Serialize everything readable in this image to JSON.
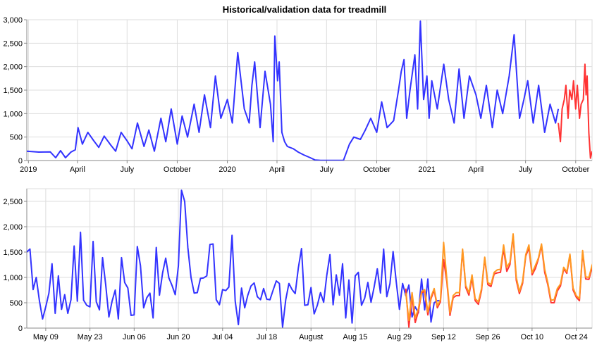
{
  "colors": {
    "history": "#3333ff",
    "validation": "#ff3333",
    "forecast": "#ff9922",
    "grid": "#dddddd"
  },
  "chart_data": [
    {
      "type": "line",
      "title": "Historical/validation data for treadmill",
      "xlabel": "",
      "ylabel": "",
      "x_range": [
        "2018-12-29",
        "2021-10-31"
      ],
      "ylim": [
        0,
        3000
      ],
      "yticks": [
        0,
        500,
        1000,
        1500,
        2000,
        2500,
        3000
      ],
      "ytick_labels": [
        "0",
        "500",
        "1,000",
        "1,500",
        "2,000",
        "2,500",
        "3,000"
      ],
      "xticks": [
        {
          "date": "2019-01-01",
          "label": "2019"
        },
        {
          "date": "2019-04-01",
          "label": "April"
        },
        {
          "date": "2019-07-01",
          "label": "July"
        },
        {
          "date": "2019-10-01",
          "label": "October"
        },
        {
          "date": "2020-01-01",
          "label": "2020"
        },
        {
          "date": "2020-04-01",
          "label": "April"
        },
        {
          "date": "2020-07-01",
          "label": "July"
        },
        {
          "date": "2020-10-01",
          "label": "October"
        },
        {
          "date": "2021-01-01",
          "label": "2021"
        },
        {
          "date": "2021-04-01",
          "label": "April"
        },
        {
          "date": "2021-07-01",
          "label": "July"
        },
        {
          "date": "2021-10-01",
          "label": "October"
        }
      ],
      "grid": true,
      "series": [
        {
          "role": "history",
          "x": [
            "2018-12-29",
            "2019-01-20",
            "2019-02-10",
            "2019-02-20",
            "2019-03-01",
            "2019-03-10",
            "2019-03-20",
            "2019-03-28",
            "2019-04-02",
            "2019-04-10",
            "2019-04-20",
            "2019-05-01",
            "2019-05-10",
            "2019-05-20",
            "2019-06-01",
            "2019-06-10",
            "2019-06-20",
            "2019-07-01",
            "2019-07-10",
            "2019-07-20",
            "2019-08-01",
            "2019-08-10",
            "2019-08-20",
            "2019-09-01",
            "2019-09-10",
            "2019-09-20",
            "2019-10-01",
            "2019-10-10",
            "2019-10-20",
            "2019-11-01",
            "2019-11-10",
            "2019-11-20",
            "2019-12-01",
            "2019-12-10",
            "2019-12-20",
            "2020-01-01",
            "2020-01-10",
            "2020-01-20",
            "2020-02-01",
            "2020-02-10",
            "2020-02-15",
            "2020-02-20",
            "2020-03-01",
            "2020-03-10",
            "2020-03-20",
            "2020-03-25",
            "2020-03-28",
            "2020-04-02",
            "2020-04-05",
            "2020-04-10",
            "2020-04-15",
            "2020-04-20",
            "2020-05-01",
            "2020-05-10",
            "2020-05-20",
            "2020-06-01",
            "2020-06-10",
            "2020-06-20",
            "2020-06-28",
            "2020-07-15",
            "2020-08-01",
            "2020-08-12",
            "2020-08-20",
            "2020-09-01",
            "2020-09-10",
            "2020-09-20",
            "2020-10-01",
            "2020-10-10",
            "2020-10-20",
            "2020-11-01",
            "2020-11-10",
            "2020-11-15",
            "2020-11-20",
            "2020-11-25",
            "2020-12-01",
            "2020-12-10",
            "2020-12-15",
            "2020-12-20",
            "2020-12-26",
            "2021-01-01",
            "2021-01-05",
            "2021-01-10",
            "2021-01-20",
            "2021-02-01",
            "2021-02-10",
            "2021-02-20",
            "2021-03-01",
            "2021-03-10",
            "2021-03-20",
            "2021-04-01",
            "2021-04-10",
            "2021-04-20",
            "2021-05-01",
            "2021-05-10",
            "2021-05-20",
            "2021-06-01",
            "2021-06-10",
            "2021-06-20",
            "2021-06-28",
            "2021-07-05",
            "2021-07-15",
            "2021-07-25",
            "2021-08-05",
            "2021-08-15",
            "2021-08-25",
            "2021-08-30"
          ],
          "y": [
            200,
            180,
            185,
            60,
            210,
            60,
            180,
            230,
            700,
            350,
            600,
            420,
            280,
            520,
            330,
            200,
            600,
            420,
            250,
            800,
            300,
            650,
            200,
            900,
            400,
            1100,
            350,
            950,
            500,
            1200,
            600,
            1400,
            700,
            1800,
            900,
            1300,
            800,
            2300,
            1100,
            800,
            1600,
            2100,
            700,
            1900,
            1200,
            400,
            2650,
            1700,
            2100,
            600,
            400,
            300,
            250,
            180,
            120,
            60,
            10,
            5,
            5,
            5,
            5,
            350,
            500,
            450,
            650,
            900,
            600,
            1250,
            700,
            850,
            1500,
            1900,
            2150,
            900,
            1500,
            2250,
            1100,
            2970,
            1300,
            1800,
            900,
            1700,
            1100,
            2050,
            1300,
            800,
            1950,
            900,
            1800,
            1400,
            900,
            1600,
            700,
            1500,
            1000,
            1800,
            2680,
            900,
            1300,
            1700,
            800,
            1600,
            600,
            1200,
            800,
            1100
          ]
        },
        {
          "role": "validation",
          "x": [
            "2021-08-30",
            "2021-09-03",
            "2021-09-06",
            "2021-09-10",
            "2021-09-13",
            "2021-09-17",
            "2021-09-20",
            "2021-09-24",
            "2021-09-27",
            "2021-10-01",
            "2021-10-04",
            "2021-10-08",
            "2021-10-11",
            "2021-10-15",
            "2021-10-18",
            "2021-10-20",
            "2021-10-22",
            "2021-10-25",
            "2021-10-28",
            "2021-10-31"
          ],
          "y": [
            800,
            400,
            1100,
            1300,
            1600,
            900,
            1500,
            1300,
            1700,
            1100,
            1600,
            900,
            1200,
            1300,
            2050,
            1400,
            1800,
            600,
            50,
            200
          ]
        }
      ]
    },
    {
      "type": "line",
      "title": "",
      "xlabel": "",
      "ylabel": "",
      "x_range": [
        "2021-05-03",
        "2021-10-29"
      ],
      "ylim": [
        0,
        2750
      ],
      "yticks": [
        0,
        500,
        1000,
        1500,
        2000,
        2500
      ],
      "ytick_labels": [
        "0",
        "500",
        "1,000",
        "1,500",
        "2,000",
        "2,500"
      ],
      "xticks": [
        {
          "date": "2021-05-09",
          "label": "May 09"
        },
        {
          "date": "2021-05-23",
          "label": "May 23"
        },
        {
          "date": "2021-06-06",
          "label": "Jun 06"
        },
        {
          "date": "2021-06-20",
          "label": "Jun 20"
        },
        {
          "date": "2021-07-04",
          "label": "Jul 04"
        },
        {
          "date": "2021-07-18",
          "label": "Jul 18"
        },
        {
          "date": "2021-08-01",
          "label": "August"
        },
        {
          "date": "2021-08-15",
          "label": "Aug 15"
        },
        {
          "date": "2021-08-29",
          "label": "Aug 29"
        },
        {
          "date": "2021-09-12",
          "label": "Sep 12"
        },
        {
          "date": "2021-09-26",
          "label": "Sep 26"
        },
        {
          "date": "2021-10-10",
          "label": "Oct 10"
        },
        {
          "date": "2021-10-24",
          "label": "Oct 24"
        }
      ],
      "grid": true,
      "series": [
        {
          "role": "history",
          "start": "2021-05-03",
          "y": [
            1500,
            1560,
            760,
            1000,
            540,
            180,
            420,
            690,
            1270,
            290,
            1030,
            370,
            660,
            290,
            560,
            1620,
            530,
            1890,
            550,
            450,
            420,
            1710,
            520,
            360,
            1390,
            850,
            220,
            530,
            750,
            180,
            1390,
            900,
            790,
            250,
            260,
            1610,
            1230,
            400,
            600,
            690,
            200,
            1590,
            650,
            1090,
            1380,
            990,
            840,
            660,
            1230,
            2720,
            2500,
            1590,
            1000,
            690,
            700,
            980,
            990,
            1030,
            1650,
            1660,
            560,
            460,
            760,
            740,
            810,
            1830,
            530,
            70,
            790,
            400,
            650,
            830,
            890,
            620,
            560,
            780,
            570,
            560,
            750,
            930,
            880,
            20,
            560,
            880,
            760,
            680,
            1190,
            1570,
            450,
            460,
            800,
            280,
            450,
            700,
            510,
            1040,
            1450,
            460,
            1050,
            650,
            1270,
            200,
            950,
            100,
            1030,
            1100,
            450,
            590,
            900,
            510,
            810,
            1170,
            690,
            1560,
            620,
            880,
            1510,
            910,
            370,
            880,
            640,
            850,
            220,
            420,
            300,
            970,
            360,
            970,
            120,
            500,
            540,
            540
          ],
          "value_range_note": ""
        },
        {
          "role": "validation",
          "start": "2021-08-31",
          "y": [
            780,
            20,
            620,
            110,
            330,
            700,
            720,
            260,
            580,
            750,
            400,
            520,
            1350,
            920,
            250,
            600,
            640,
            640,
            1540,
            800,
            650,
            990,
            540,
            470,
            740,
            1380,
            860,
            820,
            1070,
            1090,
            1100,
            1570,
            1120,
            1250,
            1830,
            940,
            680,
            880,
            1420,
            1580,
            1050,
            1170,
            1360,
            1630,
            1100,
            850,
            500,
            500,
            730,
            830,
            1170,
            1080,
            1440,
            750,
            610,
            540,
            1500,
            970,
            960,
            1190,
            1350,
            1440,
            910,
            990,
            2000,
            1690,
            1340,
            1590,
            1300,
            440,
            40,
            60,
            350,
            430,
            690,
            250,
            380,
            820,
            310,
            160,
            130
          ]
        },
        {
          "role": "forecast",
          "start": "2021-08-31",
          "y": [
            700,
            150,
            700,
            200,
            380,
            720,
            760,
            320,
            620,
            780,
            440,
            560,
            1690,
            980,
            300,
            640,
            700,
            700,
            1560,
            840,
            700,
            1050,
            580,
            520,
            780,
            1400,
            900,
            860,
            1100,
            1150,
            1160,
            1640,
            1200,
            1300,
            1860,
            1000,
            720,
            920,
            1450,
            1640,
            1090,
            1230,
            1380,
            1660,
            1160,
            890,
            550,
            560,
            780,
            870,
            1200,
            1110,
            1460,
            790,
            640,
            580,
            1530,
            1010,
            1000,
            1240,
            1390,
            1470,
            960,
            1040,
            2010,
            1710,
            1390,
            1610,
            1350,
            500,
            80,
            110,
            400,
            470,
            740,
            300,
            420,
            860,
            360,
            210,
            540
          ]
        }
      ]
    }
  ]
}
